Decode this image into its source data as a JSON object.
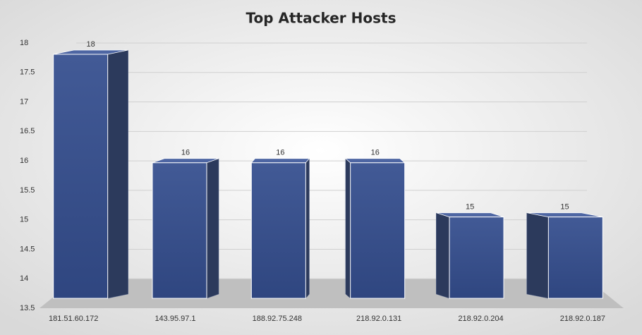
{
  "chart_data": {
    "type": "bar3d",
    "title": "Top Attacker Hosts",
    "categories": [
      "181.51.60.172",
      "143.95.97.1",
      "188.92.75.248",
      "218.92.0.131",
      "218.92.0.204",
      "218.92.0.187"
    ],
    "values": [
      18,
      16,
      16,
      16,
      15,
      15
    ],
    "color": "#3b5390",
    "ylim": [
      13.5,
      18
    ],
    "yticks": [
      13.5,
      14,
      14.5,
      15,
      15.5,
      16,
      16.5,
      17,
      17.5,
      18
    ],
    "grid": true
  }
}
